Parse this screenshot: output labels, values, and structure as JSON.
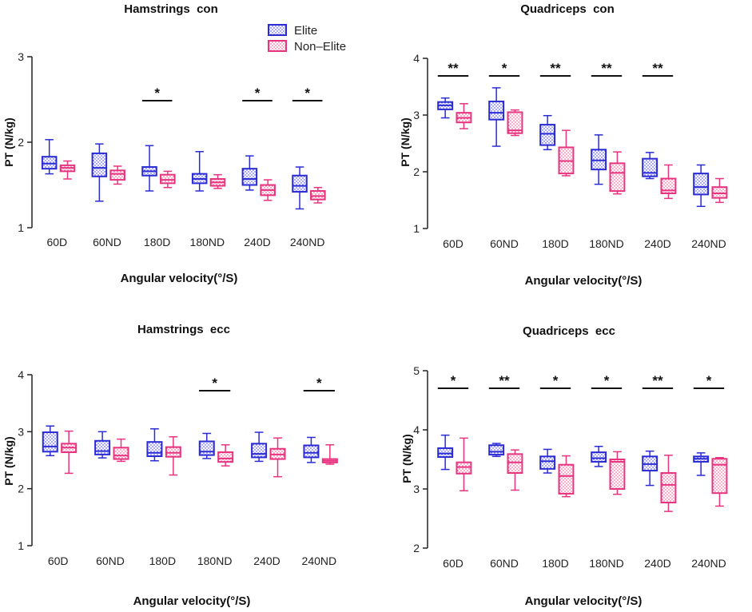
{
  "legend": {
    "items": [
      {
        "label": "Elite",
        "color": "#2b2bd6",
        "fill": "#a9b8ee"
      },
      {
        "label": "Non–Elite",
        "color": "#e8337f",
        "fill": "#f6b6d0"
      }
    ]
  },
  "chart_data": [
    {
      "type": "box",
      "title": "Hamstrings  con",
      "xlabel": "Angular velocity(°/S)",
      "ylabel": "PT (N/kg)",
      "ylim": [
        1,
        3
      ],
      "yticks": [
        1,
        2,
        3
      ],
      "categories": [
        "60D",
        "60ND",
        "180D",
        "180ND",
        "240D",
        "240ND"
      ],
      "series": [
        {
          "name": "Elite",
          "boxes": [
            {
              "min": 1.63,
              "q1": 1.69,
              "median": 1.75,
              "q3": 1.83,
              "max": 2.03
            },
            {
              "min": 1.31,
              "q1": 1.6,
              "median": 1.7,
              "q3": 1.87,
              "max": 1.98
            },
            {
              "min": 1.43,
              "q1": 1.61,
              "median": 1.66,
              "q3": 1.71,
              "max": 1.96
            },
            {
              "min": 1.43,
              "q1": 1.52,
              "median": 1.57,
              "q3": 1.63,
              "max": 1.89
            },
            {
              "min": 1.44,
              "q1": 1.5,
              "median": 1.57,
              "q3": 1.69,
              "max": 1.84
            },
            {
              "min": 1.22,
              "q1": 1.42,
              "median": 1.49,
              "q3": 1.61,
              "max": 1.71
            }
          ]
        },
        {
          "name": "Non-Elite",
          "boxes": [
            {
              "min": 1.57,
              "q1": 1.66,
              "median": 1.7,
              "q3": 1.73,
              "max": 1.78
            },
            {
              "min": 1.51,
              "q1": 1.56,
              "median": 1.63,
              "q3": 1.67,
              "max": 1.72
            },
            {
              "min": 1.47,
              "q1": 1.52,
              "median": 1.56,
              "q3": 1.62,
              "max": 1.66
            },
            {
              "min": 1.46,
              "q1": 1.49,
              "median": 1.53,
              "q3": 1.57,
              "max": 1.62
            },
            {
              "min": 1.32,
              "q1": 1.38,
              "median": 1.44,
              "q3": 1.5,
              "max": 1.56
            },
            {
              "min": 1.29,
              "q1": 1.33,
              "median": 1.37,
              "q3": 1.43,
              "max": 1.47
            }
          ]
        }
      ],
      "significance": [
        "",
        "",
        "*",
        "",
        "*",
        "*"
      ]
    },
    {
      "type": "box",
      "title": "Quadriceps  con",
      "xlabel": "Angular velocity(°/S)",
      "ylabel": "PT (N/kg)",
      "ylim": [
        1,
        4
      ],
      "yticks": [
        1,
        2,
        3,
        4
      ],
      "categories": [
        "60D",
        "60ND",
        "180D",
        "180ND",
        "240D",
        "240ND"
      ],
      "series": [
        {
          "name": "Elite",
          "boxes": [
            {
              "min": 2.95,
              "q1": 3.1,
              "median": 3.17,
              "q3": 3.23,
              "max": 3.3
            },
            {
              "min": 2.45,
              "q1": 2.92,
              "median": 3.04,
              "q3": 3.24,
              "max": 3.48
            },
            {
              "min": 2.39,
              "q1": 2.47,
              "median": 2.67,
              "q3": 2.83,
              "max": 2.99
            },
            {
              "min": 1.78,
              "q1": 2.04,
              "median": 2.2,
              "q3": 2.39,
              "max": 2.65
            },
            {
              "min": 1.88,
              "q1": 1.92,
              "median": 1.98,
              "q3": 2.23,
              "max": 2.34
            },
            {
              "min": 1.39,
              "q1": 1.6,
              "median": 1.73,
              "q3": 1.97,
              "max": 2.12
            }
          ]
        },
        {
          "name": "Non-Elite",
          "boxes": [
            {
              "min": 2.76,
              "q1": 2.87,
              "median": 2.95,
              "q3": 3.04,
              "max": 3.2
            },
            {
              "min": 2.64,
              "q1": 2.68,
              "median": 2.73,
              "q3": 3.05,
              "max": 3.09
            },
            {
              "min": 1.93,
              "q1": 1.97,
              "median": 2.19,
              "q3": 2.43,
              "max": 2.73
            },
            {
              "min": 1.61,
              "q1": 1.66,
              "median": 1.98,
              "q3": 2.15,
              "max": 2.35
            },
            {
              "min": 1.53,
              "q1": 1.62,
              "median": 1.67,
              "q3": 1.88,
              "max": 2.12
            },
            {
              "min": 1.46,
              "q1": 1.54,
              "median": 1.62,
              "q3": 1.73,
              "max": 1.88
            }
          ]
        }
      ],
      "significance": [
        "**",
        "*",
        "**",
        "**",
        "**",
        ""
      ]
    },
    {
      "type": "box",
      "title": "Hamstrings  ecc",
      "xlabel": "Angular velocity(°/S)",
      "ylabel": "PT (N/kg)",
      "ylim": [
        1,
        4
      ],
      "yticks": [
        1,
        2,
        3,
        4
      ],
      "categories": [
        "60D",
        "60ND",
        "180D",
        "180ND",
        "240D",
        "240ND"
      ],
      "series": [
        {
          "name": "Elite",
          "boxes": [
            {
              "min": 2.58,
              "q1": 2.65,
              "median": 2.74,
              "q3": 2.99,
              "max": 3.1
            },
            {
              "min": 2.54,
              "q1": 2.6,
              "median": 2.66,
              "q3": 2.84,
              "max": 3.0
            },
            {
              "min": 2.49,
              "q1": 2.57,
              "median": 2.63,
              "q3": 2.82,
              "max": 3.05
            },
            {
              "min": 2.53,
              "q1": 2.59,
              "median": 2.65,
              "q3": 2.83,
              "max": 2.97
            },
            {
              "min": 2.48,
              "q1": 2.55,
              "median": 2.61,
              "q3": 2.79,
              "max": 2.99
            },
            {
              "min": 2.46,
              "q1": 2.55,
              "median": 2.63,
              "q3": 2.76,
              "max": 2.9
            }
          ]
        },
        {
          "name": "Non-Elite",
          "boxes": [
            {
              "min": 2.27,
              "q1": 2.64,
              "median": 2.72,
              "q3": 2.79,
              "max": 3.01
            },
            {
              "min": 2.48,
              "q1": 2.52,
              "median": 2.58,
              "q3": 2.72,
              "max": 2.87
            },
            {
              "min": 2.24,
              "q1": 2.56,
              "median": 2.63,
              "q3": 2.73,
              "max": 2.91
            },
            {
              "min": 2.4,
              "q1": 2.47,
              "median": 2.53,
              "q3": 2.64,
              "max": 2.77
            },
            {
              "min": 2.21,
              "q1": 2.52,
              "median": 2.6,
              "q3": 2.7,
              "max": 2.89
            },
            {
              "min": 2.43,
              "q1": 2.46,
              "median": 2.49,
              "q3": 2.52,
              "max": 2.77
            }
          ]
        }
      ],
      "significance": [
        "",
        "",
        "",
        "*",
        "",
        "*"
      ]
    },
    {
      "type": "box",
      "title": "Quadriceps  ecc",
      "xlabel": "Angular velocity(°/S)",
      "ylabel": "PT (N/kg)",
      "ylim": [
        2,
        5
      ],
      "yticks": [
        2,
        3,
        4,
        5
      ],
      "categories": [
        "60D",
        "60ND",
        "180D",
        "180ND",
        "240D",
        "240ND"
      ],
      "series": [
        {
          "name": "Elite",
          "boxes": [
            {
              "min": 3.33,
              "q1": 3.54,
              "median": 3.6,
              "q3": 3.69,
              "max": 3.91
            },
            {
              "min": 3.55,
              "q1": 3.58,
              "median": 3.63,
              "q3": 3.74,
              "max": 3.77
            },
            {
              "min": 3.27,
              "q1": 3.34,
              "median": 3.47,
              "q3": 3.55,
              "max": 3.67
            },
            {
              "min": 3.38,
              "q1": 3.46,
              "median": 3.52,
              "q3": 3.62,
              "max": 3.72
            },
            {
              "min": 3.06,
              "q1": 3.31,
              "median": 3.42,
              "q3": 3.55,
              "max": 3.64
            },
            {
              "min": 3.23,
              "q1": 3.46,
              "median": 3.51,
              "q3": 3.55,
              "max": 3.61
            }
          ]
        },
        {
          "name": "Non-Elite",
          "boxes": [
            {
              "min": 2.97,
              "q1": 3.26,
              "median": 3.37,
              "q3": 3.45,
              "max": 3.86
            },
            {
              "min": 2.98,
              "q1": 3.27,
              "median": 3.45,
              "q3": 3.59,
              "max": 3.66
            },
            {
              "min": 2.87,
              "q1": 2.92,
              "median": 3.22,
              "q3": 3.41,
              "max": 3.56
            },
            {
              "min": 2.91,
              "q1": 3.0,
              "median": 3.46,
              "q3": 3.5,
              "max": 3.63
            },
            {
              "min": 2.62,
              "q1": 2.77,
              "median": 3.07,
              "q3": 3.27,
              "max": 3.57
            },
            {
              "min": 2.71,
              "q1": 2.93,
              "median": 3.41,
              "q3": 3.51,
              "max": 3.53
            }
          ]
        }
      ],
      "significance": [
        "*",
        "**",
        "*",
        "*",
        "**",
        "*"
      ]
    }
  ]
}
